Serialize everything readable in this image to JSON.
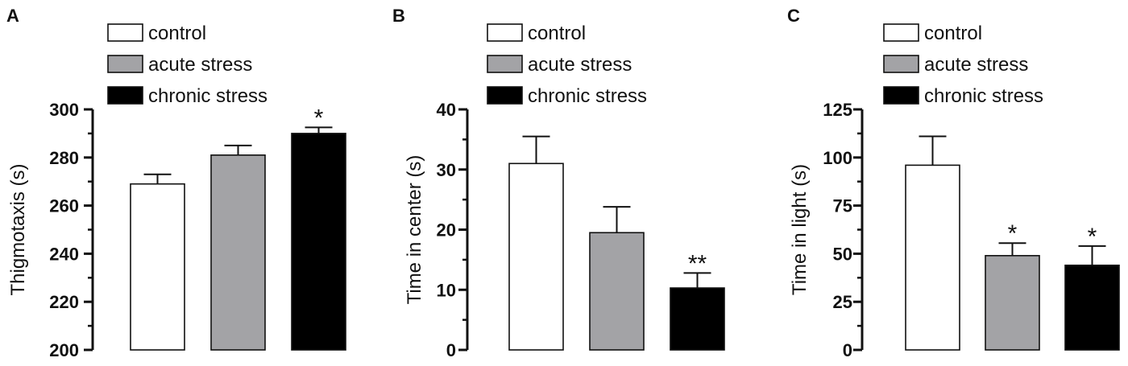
{
  "colors": {
    "control": "#ffffff",
    "acute_stress": "#a3a3a6",
    "chronic_stress": "#000000",
    "axis": "#111111"
  },
  "legend": {
    "control": "control",
    "acute_stress": "acute stress",
    "chronic_stress": "chronic stress"
  },
  "chart_data": [
    {
      "panel": "A",
      "type": "bar",
      "categories": [
        "control",
        "acute stress",
        "chronic stress"
      ],
      "values": [
        269,
        281,
        290
      ],
      "errors": [
        4,
        4,
        2.5
      ],
      "significance": [
        "",
        "",
        "*"
      ],
      "ylabel": "Thigmotaxis (s)",
      "ylim": [
        200,
        300
      ],
      "yticks": [
        200,
        220,
        240,
        260,
        280,
        300
      ],
      "minor_step": 10,
      "grid": false,
      "legend_position": "top-left"
    },
    {
      "panel": "B",
      "type": "bar",
      "categories": [
        "control",
        "acute stress",
        "chronic stress"
      ],
      "values": [
        31,
        19.5,
        10.3
      ],
      "errors": [
        4.5,
        4.3,
        2.5
      ],
      "significance": [
        "",
        "",
        "**"
      ],
      "ylabel": "Time in center (s)",
      "ylim": [
        0,
        40
      ],
      "yticks": [
        0,
        10,
        20,
        30,
        40
      ],
      "minor_step": 5,
      "grid": false,
      "legend_position": "top-left"
    },
    {
      "panel": "C",
      "type": "bar",
      "categories": [
        "control",
        "acute stress",
        "chronic stress"
      ],
      "values": [
        96,
        49,
        44
      ],
      "errors": [
        15,
        6.5,
        10
      ],
      "significance": [
        "",
        "*",
        "*"
      ],
      "ylabel": "Time in light (s)",
      "ylim": [
        0,
        125
      ],
      "yticks": [
        0,
        25,
        50,
        75,
        100,
        125
      ],
      "minor_step": 12.5,
      "grid": false,
      "legend_position": "top-left"
    }
  ]
}
